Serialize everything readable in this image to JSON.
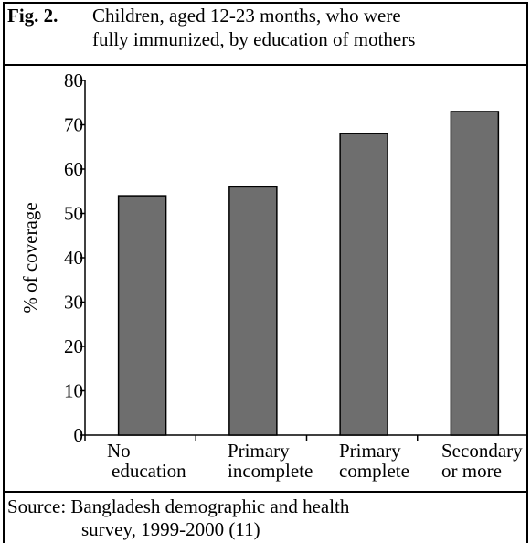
{
  "caption": {
    "figure_label": "Fig. 2.",
    "line1": "Children, aged 12-23 months, who were",
    "line2": "fully immunized,  by education of mothers"
  },
  "source": {
    "line1": "Source: Bangladesh demographic and health",
    "line2": "survey, 1999-2000 (11)"
  },
  "chart_data": {
    "type": "bar",
    "title": "",
    "xlabel": "",
    "ylabel": "% of coverage",
    "categories": [
      [
        "No",
        "education"
      ],
      [
        "Primary",
        "incomplete"
      ],
      [
        "Primary",
        "complete"
      ],
      [
        "Secondary",
        "or more"
      ]
    ],
    "values": [
      54,
      56,
      68,
      73
    ],
    "ylim": [
      0,
      80
    ],
    "yticks": [
      0,
      10,
      20,
      30,
      40,
      50,
      60,
      70,
      80
    ],
    "grid": false,
    "legend": "none",
    "bar_color": "#6e6e6e"
  }
}
